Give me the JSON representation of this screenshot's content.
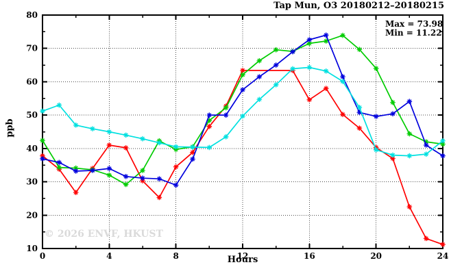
{
  "chart_data": {
    "type": "line",
    "title": "Tap Mun, O3 20180212–20180215",
    "xlabel": "Hours",
    "ylabel": "ppb",
    "watermark": "© 2026 ENVF, HKUST",
    "annotations": {
      "max_label": "Max = 73.98",
      "min_label": "Min = 11.22"
    },
    "max_value": 73.98,
    "min_value": 11.22,
    "xlim": [
      0,
      24
    ],
    "ylim": [
      10,
      80
    ],
    "x_major_ticks": [
      0,
      4,
      8,
      12,
      16,
      20,
      24
    ],
    "x_minor_ticks": [
      2,
      6,
      10,
      14,
      18,
      22
    ],
    "y_major_ticks": [
      10,
      20,
      30,
      40,
      50,
      60,
      70,
      80
    ],
    "y_minor_ticks": [
      15,
      25,
      35,
      45,
      55,
      65,
      75
    ],
    "grid_x": [
      4,
      8,
      12,
      16,
      20
    ],
    "grid_y": [
      20,
      30,
      40,
      50,
      60,
      70
    ],
    "grid_on": true,
    "legend_position": "none",
    "grid_color": "#4a4a4a",
    "axis_color": "#000000",
    "x": [
      0,
      1,
      2,
      3,
      4,
      5,
      6,
      7,
      8,
      9,
      10,
      11,
      12,
      13,
      14,
      15,
      16,
      17,
      18,
      19,
      20,
      21,
      22,
      23,
      24
    ],
    "series": [
      {
        "name": "series-red",
        "color": "#ff0000",
        "values": [
          37.8,
          33.8,
          26.8,
          34.0,
          41.0,
          40.2,
          30.3,
          25.3,
          34.5,
          38.8,
          46.6,
          52.7,
          63.4,
          null,
          null,
          63.4,
          54.6,
          58.0,
          50.2,
          46.1,
          40.3,
          37.0,
          22.5,
          13.0,
          11.22
        ]
      },
      {
        "name": "series-green",
        "color": "#00cc00",
        "values": [
          42.4,
          34.3,
          34.1,
          33.6,
          32.0,
          29.2,
          33.4,
          42.3,
          39.7,
          40.5,
          48.4,
          52.2,
          62.1,
          66.3,
          69.6,
          69.1,
          71.5,
          72.2,
          73.9,
          69.7,
          64.0,
          53.8,
          44.4,
          42.0,
          41.3
        ]
      },
      {
        "name": "series-blue",
        "color": "#0000dd",
        "values": [
          36.9,
          35.8,
          33.2,
          33.4,
          34.0,
          31.6,
          31.1,
          30.9,
          29.0,
          36.8,
          50.0,
          50.0,
          57.6,
          61.5,
          65.0,
          69.0,
          72.6,
          73.98,
          61.5,
          50.8,
          49.6,
          50.4,
          54.1,
          41.0,
          37.8
        ]
      },
      {
        "name": "series-cyan",
        "color": "#00e0e0",
        "values": [
          51.2,
          53.0,
          47.0,
          45.9,
          45.0,
          44.0,
          42.9,
          41.7,
          40.5,
          40.4,
          40.3,
          43.5,
          49.7,
          54.7,
          59.1,
          63.9,
          64.3,
          63.2,
          60.1,
          52.3,
          39.6,
          38.0,
          37.8,
          38.3,
          42.3
        ]
      }
    ]
  }
}
